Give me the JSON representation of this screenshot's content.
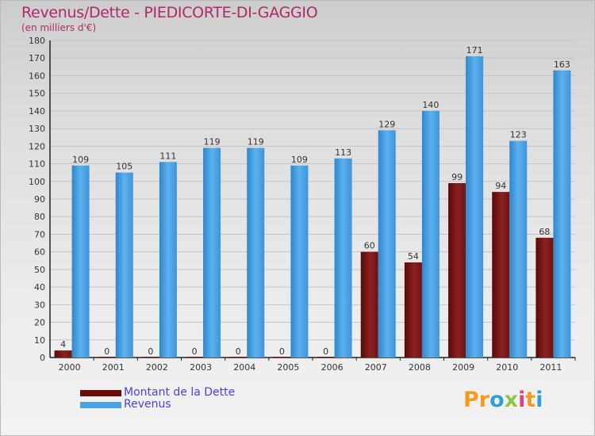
{
  "header": {
    "title": "Revenus/Dette - PIEDICORTE-DI-GAGGIO",
    "subtitle": "(en milliers d'€)"
  },
  "chart_data": {
    "type": "bar",
    "title": "Revenus/Dette - PIEDICORTE-DI-GAGGIO",
    "ylabel": "(en milliers d'€)",
    "xlabel": "",
    "categories": [
      "2000",
      "2001",
      "2002",
      "2003",
      "2004",
      "2005",
      "2006",
      "2007",
      "2008",
      "2009",
      "2010",
      "2011"
    ],
    "series": [
      {
        "name": "Montant de la Dette",
        "color": "#7a1414",
        "values": [
          4,
          0,
          0,
          0,
          0,
          0,
          0,
          60,
          54,
          99,
          94,
          68
        ]
      },
      {
        "name": "Revenus",
        "color": "#4aa3e6",
        "values": [
          109,
          105,
          111,
          119,
          119,
          109,
          113,
          129,
          140,
          171,
          123,
          163
        ]
      }
    ],
    "ylim": [
      0,
      180
    ],
    "yticks": [
      0,
      10,
      20,
      30,
      40,
      50,
      60,
      70,
      80,
      90,
      100,
      110,
      120,
      130,
      140,
      150,
      160,
      170,
      180
    ],
    "grid": true,
    "legend": "bottom-left"
  },
  "legend": {
    "debt_label": "Montant de la Dette",
    "revenue_label": "Revenus",
    "debt_color": "#6b0c0c",
    "revenue_color": "#4aa3e6"
  },
  "logo": {
    "text": "Proxiti",
    "letters": [
      "P",
      "r",
      "o",
      "x",
      "i",
      "t",
      "i"
    ],
    "colors": [
      "#f59a1e",
      "#f59a1e",
      "#2e9ee0",
      "#8cc63f",
      "#e53b8c",
      "#f59a1e",
      "#2e9ee0"
    ]
  }
}
